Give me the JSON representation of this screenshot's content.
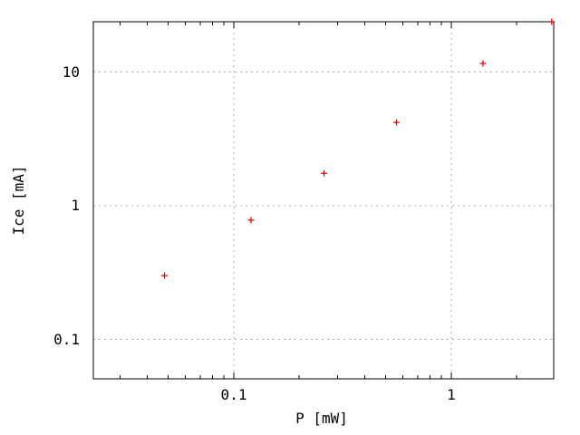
{
  "chart_data": {
    "type": "scatter",
    "title": "",
    "xlabel": "P [mW]",
    "ylabel": "Ice [mA]",
    "x_scale": "log",
    "y_scale": "log",
    "xlim": [
      0.0226,
      2.96
    ],
    "ylim": [
      0.0507,
      23.8
    ],
    "x_major_ticks": [
      0.1,
      1
    ],
    "x_tick_labels": [
      "0.1",
      "1"
    ],
    "y_major_ticks": [
      0.1,
      1,
      10
    ],
    "y_tick_labels": [
      "0.1",
      "1",
      "10"
    ],
    "grid": true,
    "grid_style": "dotted",
    "legend": false,
    "marker": "plus",
    "marker_size": 7,
    "marker_color": "#e00000",
    "grid_color": "#aaaaaa",
    "border_color": "#000000",
    "background_color": "#ffffff",
    "points": [
      {
        "x": 0.048,
        "y": 0.3
      },
      {
        "x": 0.12,
        "y": 0.78
      },
      {
        "x": 0.26,
        "y": 1.75
      },
      {
        "x": 0.56,
        "y": 4.2
      },
      {
        "x": 1.4,
        "y": 11.6
      },
      {
        "x": 2.9,
        "y": 23.8
      }
    ]
  }
}
